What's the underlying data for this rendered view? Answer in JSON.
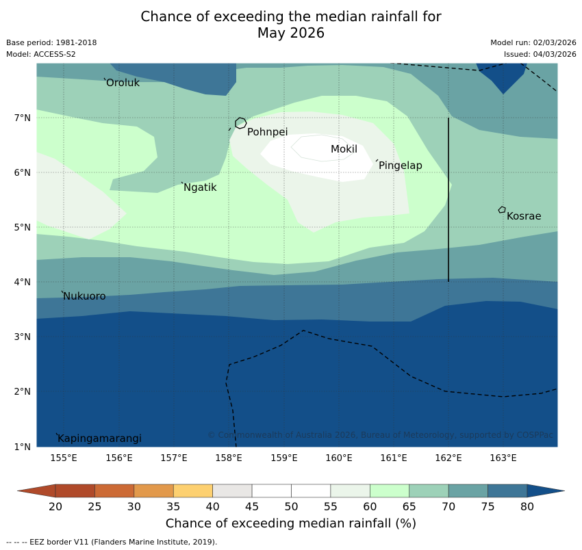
{
  "title": {
    "line1": "Chance of exceeding the median rainfall for",
    "line2": "May 2026"
  },
  "meta": {
    "base_period": "Base period: 1981-2018",
    "model": "Model: ACCESS-S2",
    "model_run": "Model run: 02/03/2026",
    "issued": "Issued: 04/03/2026"
  },
  "map": {
    "lat_labels": [
      "7°N",
      "6°N",
      "5°N",
      "4°N",
      "3°N",
      "2°N",
      "1°N"
    ],
    "lon_labels": [
      "155°E",
      "156°E",
      "157°E",
      "158°E",
      "159°E",
      "160°E",
      "161°E",
      "162°E",
      "163°E"
    ],
    "places": [
      "Oroluk",
      "Pohnpei",
      "Mokil",
      "Pingelap",
      "Ngatik",
      "Kosrae",
      "Nukuoro",
      "Kapingamarangi"
    ],
    "copyright": "© Commonwealth of Australia 2026, Bureau of Meteorology, supported by COSPPac"
  },
  "colorbar": {
    "title": "Chance of exceeding median rainfall (%)",
    "ticks": [
      "20",
      "25",
      "30",
      "35",
      "40",
      "45",
      "50",
      "55",
      "60",
      "65",
      "70",
      "75",
      "80"
    ],
    "colors": [
      "#b04a2a",
      "#cc6a35",
      "#e2994b",
      "#fdd070",
      "#e9e7e5",
      "#ffffff",
      "#ffffff",
      "#ebf5ea",
      "#ccffcc",
      "#9dd1b8",
      "#6aa3a4",
      "#3e7697",
      "#134f89"
    ]
  },
  "footer": "--  --  -- EEZ border V11 (Flanders Marine Institute, 2019)."
}
